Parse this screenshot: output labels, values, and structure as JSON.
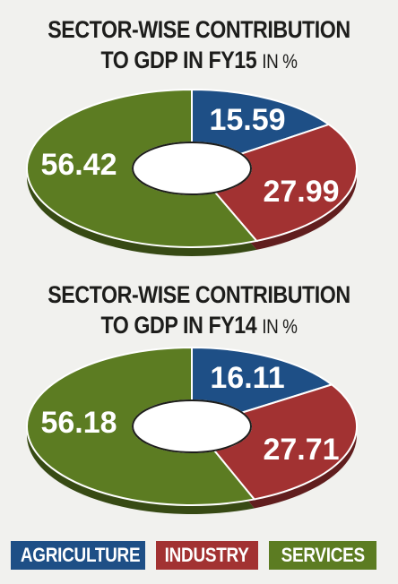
{
  "colors": {
    "agriculture": "#1e4f86",
    "industry": "#a23232",
    "services": "#5c7c22",
    "text_light": "#ffffff",
    "text_dark": "#1d1d1b"
  },
  "chart_data": [
    {
      "type": "pie",
      "title": "SECTOR-WISE CONTRIBUTION",
      "title_line2": "TO GDP IN FY15",
      "unit": "IN %",
      "categories": [
        "AGRICULTURE",
        "INDUSTRY",
        "SERVICES"
      ],
      "values": [
        15.59,
        27.99,
        56.42
      ],
      "value_labels": [
        "15.59",
        "27.99",
        "56.42"
      ]
    },
    {
      "type": "pie",
      "title": "SECTOR-WISE CONTRIBUTION",
      "title_line2": "TO GDP IN FY14",
      "unit": "IN %",
      "categories": [
        "AGRICULTURE",
        "INDUSTRY",
        "SERVICES"
      ],
      "values": [
        16.11,
        27.71,
        56.18
      ],
      "value_labels": [
        "16.11",
        "27.71",
        "56.18"
      ]
    }
  ],
  "legend": [
    {
      "label": "AGRICULTURE",
      "color": "#1e4f86"
    },
    {
      "label": "INDUSTRY",
      "color": "#a23232"
    },
    {
      "label": "SERVICES",
      "color": "#5c7c22"
    }
  ]
}
